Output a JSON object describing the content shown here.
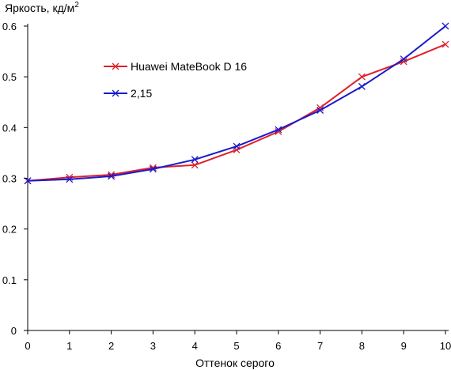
{
  "chart_data": {
    "type": "line",
    "title": "",
    "ylabel": "Яркость, кд/м",
    "ylabel_sup": "2",
    "xlabel": "Оттенок серого",
    "xlim": [
      0,
      10
    ],
    "ylim": [
      0,
      0.6
    ],
    "x_ticks": [
      "0",
      "1",
      "2",
      "3",
      "4",
      "5",
      "6",
      "7",
      "8",
      "9",
      "10"
    ],
    "y_ticks": [
      "0",
      "0.1",
      "0.2",
      "0.3",
      "0.4",
      "0.5",
      "0.6"
    ],
    "grid": false,
    "legend_position": "upper-left-inside",
    "x": [
      0,
      1,
      2,
      3,
      4,
      5,
      6,
      7,
      8,
      9,
      10
    ],
    "series": [
      {
        "name": "Huawei MateBook D 16",
        "color": "#e0202a",
        "marker": "x",
        "values": [
          0.295,
          0.302,
          0.307,
          0.321,
          0.326,
          0.356,
          0.392,
          0.439,
          0.5,
          0.53,
          0.564
        ]
      },
      {
        "name": "2,15",
        "color": "#1a1acc",
        "marker": "x",
        "values": [
          0.295,
          0.298,
          0.304,
          0.318,
          0.337,
          0.363,
          0.396,
          0.434,
          0.481,
          0.535,
          0.6
        ]
      }
    ]
  }
}
